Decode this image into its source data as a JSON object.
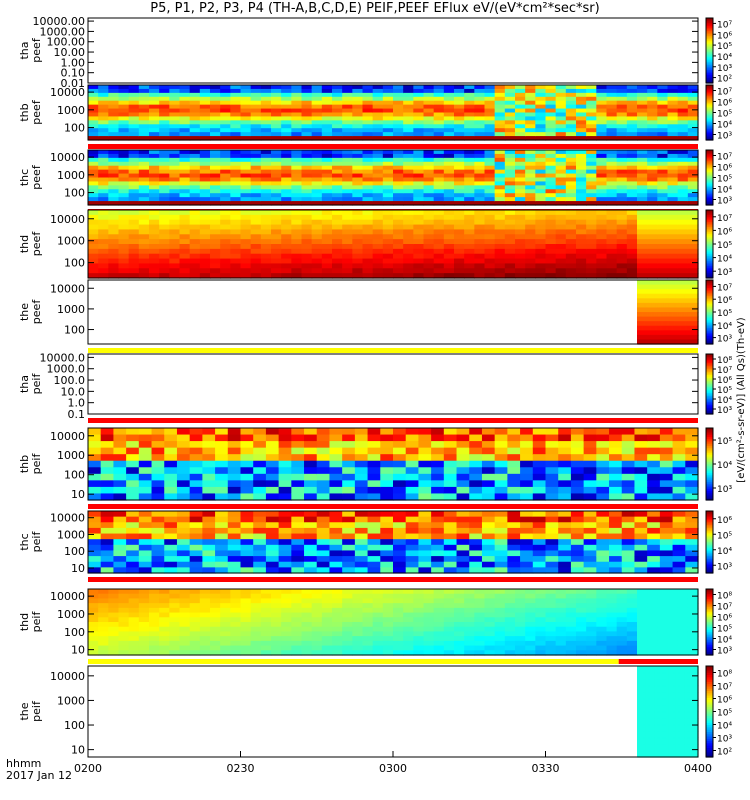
{
  "title": "P5, P1, P2, P3, P4 (TH-A,B,C,D,E) PEIF,PEEF EFlux eV/(eV*cm²*sec*sr)",
  "colors": {
    "frame": "#000000",
    "yellow": "#ffff00",
    "red": "#ff0000"
  },
  "chart_data": [
    {
      "type": "heatmap",
      "panel": "tha-peef",
      "ylabel": [
        "tha",
        "peef"
      ],
      "yticks": [
        "10000.00",
        "1000.00",
        "100.00",
        "10.00",
        "1.00",
        "0.10",
        "0.01"
      ],
      "ylog_range": [
        -2,
        4.3
      ],
      "colorbar_ticks": [
        "10⁷",
        "10⁶",
        "10⁵",
        "10⁴",
        "10³",
        "10²"
      ],
      "data_coverage": "none",
      "bar": "none"
    },
    {
      "type": "heatmap",
      "panel": "thb-peef",
      "ylabel": [
        "thb",
        "peef"
      ],
      "yticks": [
        "10000",
        "1000",
        "100"
      ],
      "ylog_range": [
        1.3,
        4.4
      ],
      "colorbar_ticks": [
        "10⁷",
        "10⁶",
        "10⁵",
        "10⁴",
        "10³"
      ],
      "data_coverage": [
        0,
        1
      ],
      "style": "electron-burst",
      "bar": "red"
    },
    {
      "type": "heatmap",
      "panel": "thc-peef",
      "ylabel": [
        "thc",
        "peef"
      ],
      "yticks": [
        "10000",
        "1000",
        "100"
      ],
      "ylog_range": [
        1.3,
        4.4
      ],
      "colorbar_ticks": [
        "10⁷",
        "10⁶",
        "10⁵",
        "10⁴",
        "10³"
      ],
      "data_coverage": [
        0,
        1
      ],
      "style": "electron-burst",
      "bar": "red"
    },
    {
      "type": "heatmap",
      "panel": "thd-peef",
      "ylabel": [
        "thd",
        "peef"
      ],
      "yticks": [
        "10000",
        "1000",
        "100"
      ],
      "ylog_range": [
        1.3,
        4.4
      ],
      "colorbar_ticks": [
        "10⁷",
        "10⁶",
        "10⁵",
        "10⁴",
        "10³"
      ],
      "data_coverage": [
        0,
        1
      ],
      "style": "electron-smooth",
      "bar": "none"
    },
    {
      "type": "heatmap",
      "panel": "the-peef",
      "ylabel": [
        "the",
        "peef"
      ],
      "yticks": [
        "10000",
        "1000",
        "100"
      ],
      "ylog_range": [
        1.3,
        4.4
      ],
      "colorbar_ticks": [
        "10⁷",
        "10⁶",
        "10⁵",
        "10⁴",
        "10³"
      ],
      "data_coverage": [
        0.9,
        1
      ],
      "style": "electron-smooth",
      "bar": "yellow"
    },
    {
      "type": "heatmap",
      "panel": "tha-peif",
      "ylabel": [
        "tha",
        "peif"
      ],
      "yticks": [
        "10000.0",
        "1000.0",
        "100.0",
        "10.0",
        "1.0",
        "0.1"
      ],
      "ylog_range": [
        -1,
        4.3
      ],
      "colorbar_ticks": [
        "10⁸",
        "10⁷",
        "10⁶",
        "10⁵",
        "10⁴",
        "10³"
      ],
      "data_coverage": "none",
      "bar": "red"
    },
    {
      "type": "heatmap",
      "panel": "thb-peif",
      "ylabel": [
        "thb",
        "peif"
      ],
      "yticks": [
        "10000",
        "1000",
        "100",
        "10"
      ],
      "ylog_range": [
        0.7,
        4.4
      ],
      "colorbar_ticks": [
        "10⁵",
        "10⁴",
        "10³"
      ],
      "data_coverage": [
        0,
        1
      ],
      "style": "ion-block",
      "bar": "red"
    },
    {
      "type": "heatmap",
      "panel": "thc-peif",
      "ylabel": [
        "thc",
        "peif"
      ],
      "yticks": [
        "10000",
        "1000",
        "100",
        "10"
      ],
      "ylog_range": [
        0.7,
        4.4
      ],
      "colorbar_ticks": [
        "10⁶",
        "10⁵",
        "10⁴",
        "10³"
      ],
      "data_coverage": [
        0,
        1
      ],
      "style": "ion-block",
      "bar": "red"
    },
    {
      "type": "heatmap",
      "panel": "thd-peif",
      "ylabel": [
        "thd",
        "peif"
      ],
      "yticks": [
        "10000",
        "1000",
        "100",
        "10"
      ],
      "ylog_range": [
        0.7,
        4.4
      ],
      "colorbar_ticks": [
        "10⁸",
        "10⁷",
        "10⁶",
        "10⁵",
        "10⁴",
        "10³"
      ],
      "data_coverage": [
        0,
        1
      ],
      "style": "ion-smooth",
      "bar": "yellow-red"
    },
    {
      "type": "heatmap",
      "panel": "the-peif",
      "ylabel": [
        "the",
        "peif"
      ],
      "yticks": [
        "10000",
        "1000",
        "100",
        "10"
      ],
      "ylog_range": [
        0.7,
        4.4
      ],
      "colorbar_ticks": [
        "10⁸",
        "10⁷",
        "10⁶",
        "10⁵",
        "10⁴",
        "10³",
        "10²"
      ],
      "data_coverage": [
        0.9,
        1
      ],
      "style": "ion-smooth",
      "bar": "none"
    }
  ],
  "xaxis": {
    "ticks": [
      "0200",
      "0230",
      "0300",
      "0330",
      "0400"
    ],
    "label_top": "hhmm",
    "label_bottom": "2017 Jan 12"
  },
  "colorbar_label": "[eV/(cm²-s-sr-eV)] (All Qs)(Th-eV)",
  "colorbar_units_side": "eV/(cm²-s-sr-eV) (All Qs)"
}
